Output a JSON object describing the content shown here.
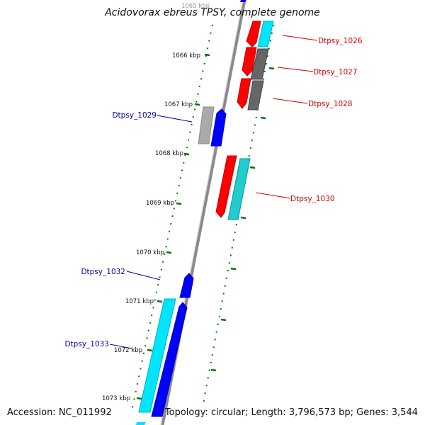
{
  "title": "Acidovorax ebreus TPSY, complete genome",
  "footer": {
    "accession": "Accession: NC_011992",
    "topology": "Topology: circular; Length: 3,796,573 bp; Genes: 3,544"
  },
  "colors": {
    "backbone": "#8a8a8a",
    "ticks": "#007700",
    "label_forward": "#cc0000",
    "label_reverse": "#0000aa"
  },
  "ticks": [
    "1065 kbp",
    "1066 kbp",
    "1067 kbp",
    "1068 kbp",
    "1069 kbp",
    "1070 kbp",
    "1071 kbp",
    "1072 kbp",
    "1073 kbp"
  ],
  "gene_labels": [
    "Dtpsy_1026",
    "Dtpsy_1027",
    "Dtpsy_1028",
    "Dtpsy_1029",
    "Dtpsy_1030",
    "Dtpsy_1032",
    "Dtpsy_1033"
  ]
}
